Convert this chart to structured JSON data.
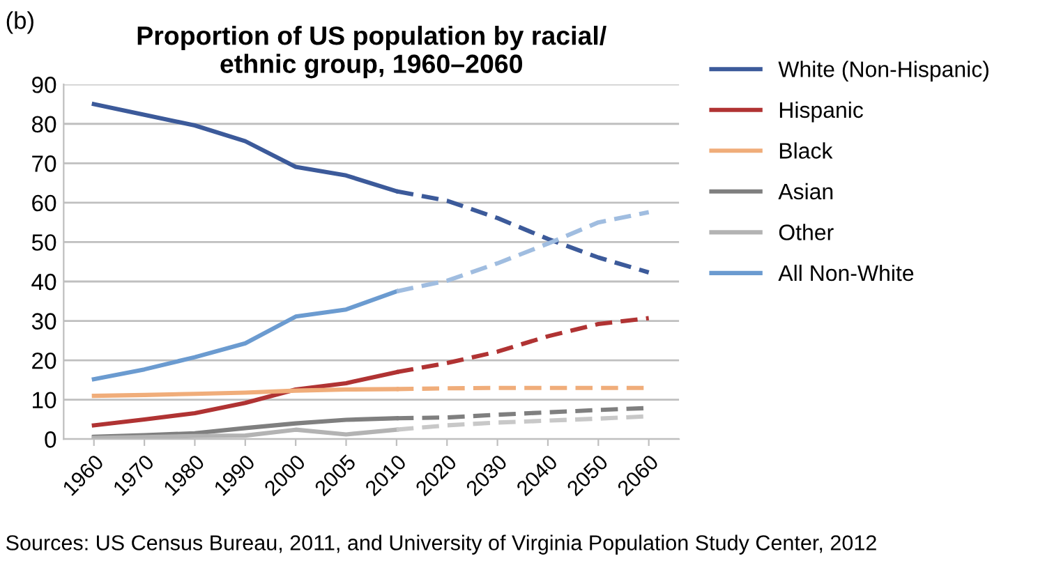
{
  "chart_data": {
    "type": "line",
    "title": "Proportion of US population by racial/\nethnic group, 1960–2060",
    "categories": [
      "1960",
      "1970",
      "1980",
      "1990",
      "2000",
      "2005",
      "2010",
      "2020",
      "2030",
      "2040",
      "2050",
      "2060"
    ],
    "ylim": [
      0,
      90
    ],
    "yticks": [
      0,
      10,
      20,
      30,
      40,
      50,
      60,
      70,
      80,
      90
    ],
    "grid": "y",
    "legend": "right",
    "marker": "none",
    "annotations": [
      "(b)",
      "Sources: US Census Bureau, 2011, and University of Virginia Population Study Center, 2012"
    ],
    "series": [
      {
        "name": "White (Non-Hispanic)",
        "color": "#3c5a9a",
        "line_style": "solid",
        "values": [
          85,
          82.3,
          79.6,
          75.6,
          69.1,
          66.9,
          62.9,
          null,
          null,
          null,
          null,
          null
        ]
      },
      {
        "name": "Hispanic",
        "color": "#b03333",
        "line_style": "solid",
        "values": [
          3.5,
          5,
          6.6,
          9.2,
          12.6,
          14.2,
          17,
          null,
          null,
          null,
          null,
          null
        ]
      },
      {
        "name": "Black",
        "color": "#f0ad7a",
        "line_style": "solid",
        "values": [
          11,
          11.2,
          11.5,
          11.8,
          12.3,
          12.6,
          12.7,
          null,
          null,
          null,
          null,
          null
        ]
      },
      {
        "name": "Asian",
        "color": "#7f7f7f",
        "line_style": "solid",
        "values": [
          0.6,
          1.0,
          1.5,
          2.8,
          4.0,
          4.9,
          5.3,
          null,
          null,
          null,
          null,
          null
        ]
      },
      {
        "name": "Other",
        "color": "#b3b3b3",
        "line_style": "solid",
        "values": [
          0.3,
          0.5,
          0.8,
          0.9,
          2.4,
          1.2,
          2.4,
          null,
          null,
          null,
          null,
          null
        ]
      },
      {
        "name": "All Non-White",
        "color": "#6b9bd0",
        "line_style": "solid",
        "values": [
          15.2,
          17.7,
          20.8,
          24.3,
          31.1,
          32.9,
          37.5,
          null,
          null,
          null,
          null,
          null
        ]
      },
      {
        "color": "#3c5a9a",
        "line_style": "dashed",
        "values": [
          null,
          null,
          null,
          null,
          null,
          null,
          62.9,
          60.5,
          56.1,
          50.8,
          46.1,
          42.3
        ]
      },
      {
        "color": "#b03333",
        "line_style": "dashed",
        "values": [
          null,
          null,
          null,
          null,
          null,
          null,
          17,
          19.3,
          22.2,
          26.1,
          29.2,
          30.7
        ]
      },
      {
        "color": "#f0ad7a",
        "line_style": "dashed",
        "values": [
          null,
          null,
          null,
          null,
          null,
          null,
          12.7,
          12.9,
          13,
          13,
          13,
          13
        ]
      },
      {
        "color": "#7f7f7f",
        "line_style": "dashed",
        "values": [
          null,
          null,
          null,
          null,
          null,
          null,
          5.3,
          5.5,
          6.2,
          6.8,
          7.4,
          7.9
        ]
      },
      {
        "color": "#c8c8c8",
        "line_style": "dashed",
        "values": [
          null,
          null,
          null,
          null,
          null,
          null,
          2.4,
          3.5,
          4.2,
          4.7,
          5.2,
          5.8
        ]
      },
      {
        "color": "#a0bde0",
        "line_style": "dashed",
        "values": [
          null,
          null,
          null,
          null,
          null,
          null,
          37.5,
          40.2,
          44.6,
          49.6,
          55.0,
          57.6
        ]
      }
    ]
  }
}
